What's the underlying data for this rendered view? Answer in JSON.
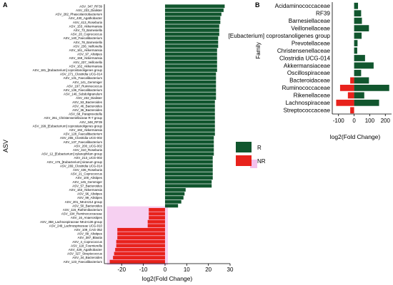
{
  "colors": {
    "R": "#11562e",
    "NR": "#e8221c",
    "highlight": "#f3c0ec"
  },
  "chart_data": [
    {
      "panel": "A",
      "type": "bar",
      "orientation": "horizontal",
      "xlabel": "log2(Fold Change)",
      "ylabel": "ASV",
      "xlim": [
        -28,
        30
      ],
      "xticks": [
        -20,
        -10,
        0,
        10,
        20,
        30
      ],
      "grid": false,
      "legend": {
        "position": "right",
        "entries": [
          "R",
          "NR"
        ]
      },
      "categories": [
        "ASV_347_RF39",
        "ASV_233_Dialister",
        "ASV_282_Phascolarctobacterium",
        "ASV_430_Agathobacter",
        "ASV_413_Roseburia",
        "ASV_153_Akkermansia",
        "ASV_73_Barnesiella",
        "ASV_20_Coprococcus",
        "ASV_140_Faecalibacterium",
        "ASV_78_Barnesiella",
        "ASV_236_Veillonella",
        "ASV_161_Akkermansia",
        "ASV_97_Alistipes",
        "ASV_159_Akkermansia",
        "ASV_237_Veillonella",
        "ASV_162_Akkermansia",
        "ASV_181_[Eubacterium] coprostanoligenes group",
        "ASV_271_Clostridia UCG-014",
        "ASV_131_Faecalibacterium",
        "ASV_141_Gemmiger",
        "ASV_197_Ruminococcus",
        "ASV_136_Faecalibacterium",
        "ASV_146_Subdoligranulum",
        "ASV_232_Dialister",
        "ASV_53_Bacteroides",
        "ASV_46_Bacteroides",
        "ASV_36_Bacteroides",
        "ASV_68_Paraprevotella",
        "ASV_261_Christensenellaceae R-7 group",
        "ASV_348_RF39",
        "ASV_199_[Eubacterium] coprostanoligenes group",
        "ASV_192_Akkermansia",
        "ASV_128_Faecalibacterium",
        "ASV_265_Clostridia UCG-002",
        "ASV_137_Faecalibacterium",
        "ASV_200_UCG-002",
        "ASV_410_Roseburia",
        "ASV_12_[Eubacterium] xylanophilum group",
        "ASV_213_UCG-002",
        "ASV_176_[Eubacterium] siraeum group",
        "ASV_269_Clostridia UCG-014",
        "ASV_436_Roseburia",
        "ASV_21_Coprococcus",
        "ASV_100_Alistipes",
        "ASV_145_Gemmiger",
        "ASV_57_Bacteroides",
        "ASV_163_Akkermansia",
        "ASV_96_Alistipes",
        "ASV_99_Alistipes",
        "ASV_201_NK4A214 group",
        "ASV_50_Bacteroides",
        "ASV_116_Ruthenibacterium",
        "ASV_194_Ruminococcaceae",
        "ASV_16_Anaerostipes",
        "ASV_358_Lachnospiraceae NK4A136 group",
        "ASV_249_Lachnospiraceae UCG-010",
        "ASV_109_CAG-352",
        "ASV_89_Alistipes",
        "ASV_387_Blautia",
        "ASV_4_Coprococcus",
        "ASV_118_Fournierella",
        "ASV_429_Agathobacter",
        "ASV_327_Streptococcus",
        "ASV_34_Bacteroides",
        "ASV_123_Faecalibacterium"
      ],
      "values": [
        27.5,
        27,
        26,
        25.5,
        25.5,
        25,
        25,
        25,
        24.5,
        24.5,
        24.5,
        24,
        24,
        24,
        24,
        24,
        24,
        23.5,
        23.5,
        23.5,
        23.5,
        23.5,
        23.5,
        23.5,
        23,
        23,
        23,
        23,
        23,
        23,
        23,
        23,
        23,
        22.5,
        22.5,
        22.5,
        22.5,
        22.5,
        22,
        22,
        22,
        22,
        22,
        22,
        21.5,
        21.5,
        9.5,
        9,
        8.5,
        7.5,
        6,
        -7.5,
        -7.5,
        -7.5,
        -8,
        -8,
        -22,
        -22,
        -22,
        -22.5,
        -22.5,
        -23,
        -23.5,
        -24,
        -25.5
      ],
      "groups": [
        "R",
        "R",
        "R",
        "R",
        "R",
        "R",
        "R",
        "R",
        "R",
        "R",
        "R",
        "R",
        "R",
        "R",
        "R",
        "R",
        "R",
        "R",
        "R",
        "R",
        "R",
        "R",
        "R",
        "R",
        "R",
        "R",
        "R",
        "R",
        "R",
        "R",
        "R",
        "R",
        "R",
        "R",
        "R",
        "R",
        "R",
        "R",
        "R",
        "R",
        "R",
        "R",
        "R",
        "R",
        "R",
        "R",
        "R",
        "R",
        "R",
        "R",
        "R",
        "NR",
        "NR",
        "NR",
        "NR",
        "NR",
        "NR",
        "NR",
        "NR",
        "NR",
        "NR",
        "NR",
        "NR",
        "NR",
        "NR"
      ]
    },
    {
      "panel": "B",
      "type": "bar",
      "orientation": "horizontal",
      "xlabel": "log2(Fold Change)",
      "ylabel": "Family",
      "xlim": [
        -140,
        240
      ],
      "xticks": [
        -100,
        0,
        100,
        200
      ],
      "grid": false,
      "categories": [
        "Acidaminococcaceae",
        "RF39",
        "Barnesiellaceae",
        "Veillonellaceae",
        "[Eubacterium] coprostanoligenes group",
        "Prevotellaceae",
        "Christensenellaceae",
        "Clostridia UCG-014",
        "Akkermansiaceae",
        "Oscillospiraceae",
        "Bacteroidaceae",
        "Ruminococcaceae",
        "Rikenellaceae",
        "Lachnospiraceae",
        "Streptococcaceae"
      ],
      "series": [
        {
          "name": "R",
          "values": [
            25,
            45,
            50,
            95,
            48,
            22,
            20,
            70,
            125,
            45,
            95,
            225,
            65,
            160,
            0
          ]
        },
        {
          "name": "NR",
          "values": [
            0,
            0,
            0,
            0,
            0,
            0,
            0,
            0,
            0,
            0,
            -25,
            -90,
            -40,
            -115,
            -25
          ]
        }
      ]
    }
  ],
  "panels": {
    "a_label": "A",
    "b_label": "B"
  },
  "legend": {
    "r_label": "R",
    "nr_label": "NR"
  }
}
